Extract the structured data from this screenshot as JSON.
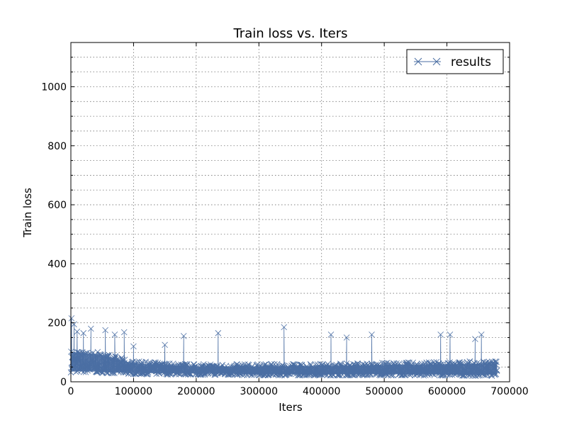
{
  "chart_data": {
    "type": "line",
    "title": "Train loss  vs. Iters",
    "xlabel": "Iters",
    "ylabel": "Train loss",
    "xlim": [
      0,
      700000
    ],
    "ylim": [
      0,
      1150
    ],
    "xticks": [
      0,
      100000,
      200000,
      300000,
      400000,
      500000,
      600000,
      700000
    ],
    "yticks": [
      0,
      200,
      400,
      600,
      800,
      1000
    ],
    "y_minor_gridlines": [
      50,
      100,
      150,
      250,
      300,
      350,
      450,
      500,
      550,
      650,
      700,
      750,
      850,
      900,
      950,
      1050,
      1100
    ],
    "grid": true,
    "legend": {
      "position": "top-right",
      "entries": [
        "results"
      ]
    },
    "series": [
      {
        "name": "results",
        "color": "#4a6ea3",
        "marker": "x",
        "x_range": [
          0,
          680000
        ],
        "band": {
          "x": [
            0,
            50000,
            100000,
            200000,
            300000,
            400000,
            500000,
            600000,
            680000
          ],
          "low": [
            32,
            30,
            26,
            24,
            22,
            22,
            22,
            21,
            20
          ],
          "high": [
            110,
            100,
            70,
            60,
            60,
            62,
            65,
            68,
            70
          ]
        },
        "peaks": [
          [
            1000,
            215
          ],
          [
            5000,
            195
          ],
          [
            10000,
            170
          ],
          [
            20000,
            165
          ],
          [
            32000,
            180
          ],
          [
            55000,
            175
          ],
          [
            70000,
            160
          ],
          [
            85000,
            168
          ],
          [
            100000,
            120
          ],
          [
            150000,
            125
          ],
          [
            180000,
            155
          ],
          [
            235000,
            165
          ],
          [
            340000,
            185
          ],
          [
            415000,
            160
          ],
          [
            440000,
            150
          ],
          [
            480000,
            160
          ],
          [
            590000,
            160
          ],
          [
            605000,
            160
          ],
          [
            645000,
            145
          ],
          [
            655000,
            160
          ]
        ]
      }
    ]
  }
}
